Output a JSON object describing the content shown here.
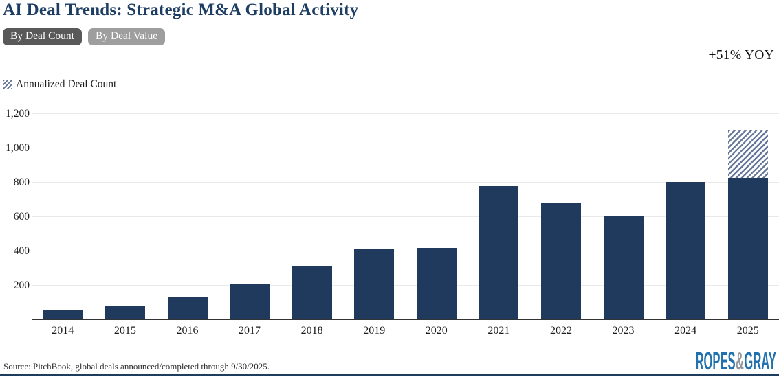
{
  "header": {
    "title": "AI Deal Trends: Strategic M&A Global Activity",
    "toggles": [
      {
        "label": "By Deal Count",
        "active": true
      },
      {
        "label": "By Deal Value",
        "active": false
      }
    ],
    "yoy_label": "+51% YOY"
  },
  "legend": {
    "annualized_label": "Annualized Deal Count"
  },
  "chart_data": {
    "type": "bar",
    "title": "AI Deal Trends: Strategic M&A Global Activity",
    "categories": [
      "2014",
      "2015",
      "2016",
      "2017",
      "2018",
      "2019",
      "2020",
      "2021",
      "2022",
      "2023",
      "2024",
      "2025"
    ],
    "values": [
      54,
      78,
      128,
      207,
      308,
      408,
      416,
      778,
      676,
      605,
      802,
      823
    ],
    "annualized": {
      "category": "2025",
      "total_value": 1100,
      "label": "Annualized Deal Count",
      "style": "diagonal-hatch"
    },
    "ylim": [
      0,
      1200
    ],
    "yticks": [
      {
        "value": 200,
        "label": "200"
      },
      {
        "value": 400,
        "label": "400"
      },
      {
        "value": 600,
        "label": "600"
      },
      {
        "value": 800,
        "label": "800"
      },
      {
        "value": 1000,
        "label": "1,000"
      },
      {
        "value": 1200,
        "label": "1,200"
      }
    ],
    "grid": true,
    "legend_position": "top-left",
    "colors": {
      "bar": "#203a5e",
      "hatch_stripe": "#66799b",
      "gridline": "#e9e9e9",
      "axis": "#333333"
    }
  },
  "footer": {
    "source": "Source: PitchBook, global deals announced/completed through 9/30/2025.",
    "logo": {
      "part1": "ROPES",
      "amp": "&",
      "part2": "GRAY",
      "blue": "#2171ae",
      "gray": "#94989d"
    },
    "rule_color": "#1d3c5e"
  },
  "colors": {
    "title": "#1d3d63",
    "toggle_active_bg": "#595959",
    "toggle_inactive_bg": "#9e9e9e"
  }
}
